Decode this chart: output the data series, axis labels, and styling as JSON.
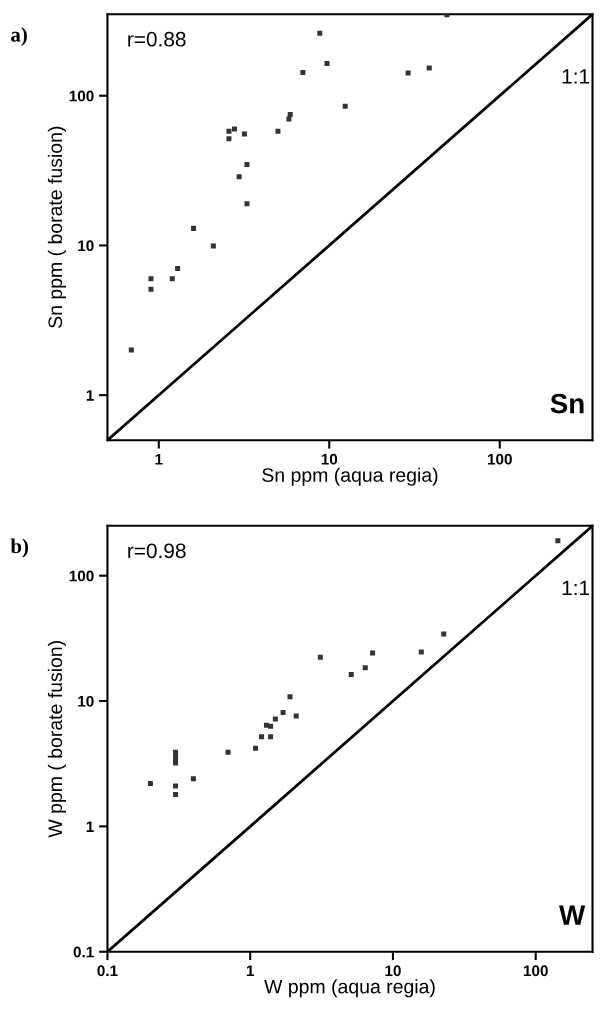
{
  "chart_data": [
    {
      "type": "scatter",
      "xlabel": "Sn ppm (aqua regia)",
      "ylabel": "Sn ppm ( borate fusion)",
      "log": "xy",
      "xlim": [
        0.5,
        350
      ],
      "ylim": [
        0.5,
        350
      ],
      "xticks": [
        1,
        10,
        100
      ],
      "yticks": [
        1,
        10,
        100
      ],
      "marker": "square",
      "grid": false,
      "annotations": [
        "a)",
        "r=0.88",
        "1:1",
        "Sn"
      ],
      "series": [
        {
          "color": "#333333",
          "x": [
            49,
            8.8,
            9.7,
            7.0,
            29,
            38.6,
            12.4,
            5.9,
            5.8,
            5.0,
            2.58,
            2.78,
            2.58,
            3.18,
            3.29,
            2.96,
            3.29,
            1.6,
            2.09,
            1.29,
            1.2,
            0.9,
            0.9,
            0.69
          ],
          "values": [
            347,
            261,
            164,
            143,
            142,
            153,
            85,
            75,
            70,
            58,
            58,
            60,
            51.5,
            55.6,
            34.7,
            28.8,
            19,
            13,
            9.9,
            7.0,
            6.0,
            6.0,
            5.1,
            2.0
          ]
        },
        {
          "type": "line",
          "color": "#000000",
          "marker": "none",
          "x": [
            0.5,
            350
          ],
          "values": [
            0.5,
            350
          ]
        }
      ]
    },
    {
      "type": "scatter",
      "xlabel": "W ppm (aqua regia)",
      "ylabel": "W ppm ( borate fusion)",
      "log": "xy",
      "xlim": [
        0.1,
        250
      ],
      "ylim": [
        0.1,
        250
      ],
      "xticks": [
        0.1,
        1,
        10,
        100
      ],
      "yticks": [
        0.1,
        1,
        10,
        100
      ],
      "marker": "square",
      "grid": false,
      "annotations": [
        "b)",
        "r=0.98",
        "1:1",
        "W"
      ],
      "series": [
        {
          "color": "#333333",
          "x": [
            143,
            22.7,
            15.8,
            7.2,
            6.4,
            5.1,
            3.1,
            1.9,
            2.1,
            1.7,
            1.5,
            1.3,
            1.39,
            1.2,
            1.39,
            1.09,
            0.7,
            0.3,
            0.3,
            0.3,
            0.3,
            0.2,
            0.3,
            0.3,
            0.4
          ],
          "values": [
            190,
            34.2,
            24.6,
            24.2,
            18.4,
            16.3,
            22.4,
            10.8,
            7.6,
            8.1,
            7.2,
            6.4,
            6.3,
            5.2,
            5.2,
            4.2,
            3.9,
            3.9,
            3.6,
            3.4,
            3.2,
            2.2,
            2.1,
            1.8,
            2.4
          ]
        },
        {
          "type": "line",
          "color": "#000000",
          "marker": "none",
          "x": [
            0.1,
            250
          ],
          "values": [
            0.1,
            250
          ]
        }
      ]
    }
  ]
}
